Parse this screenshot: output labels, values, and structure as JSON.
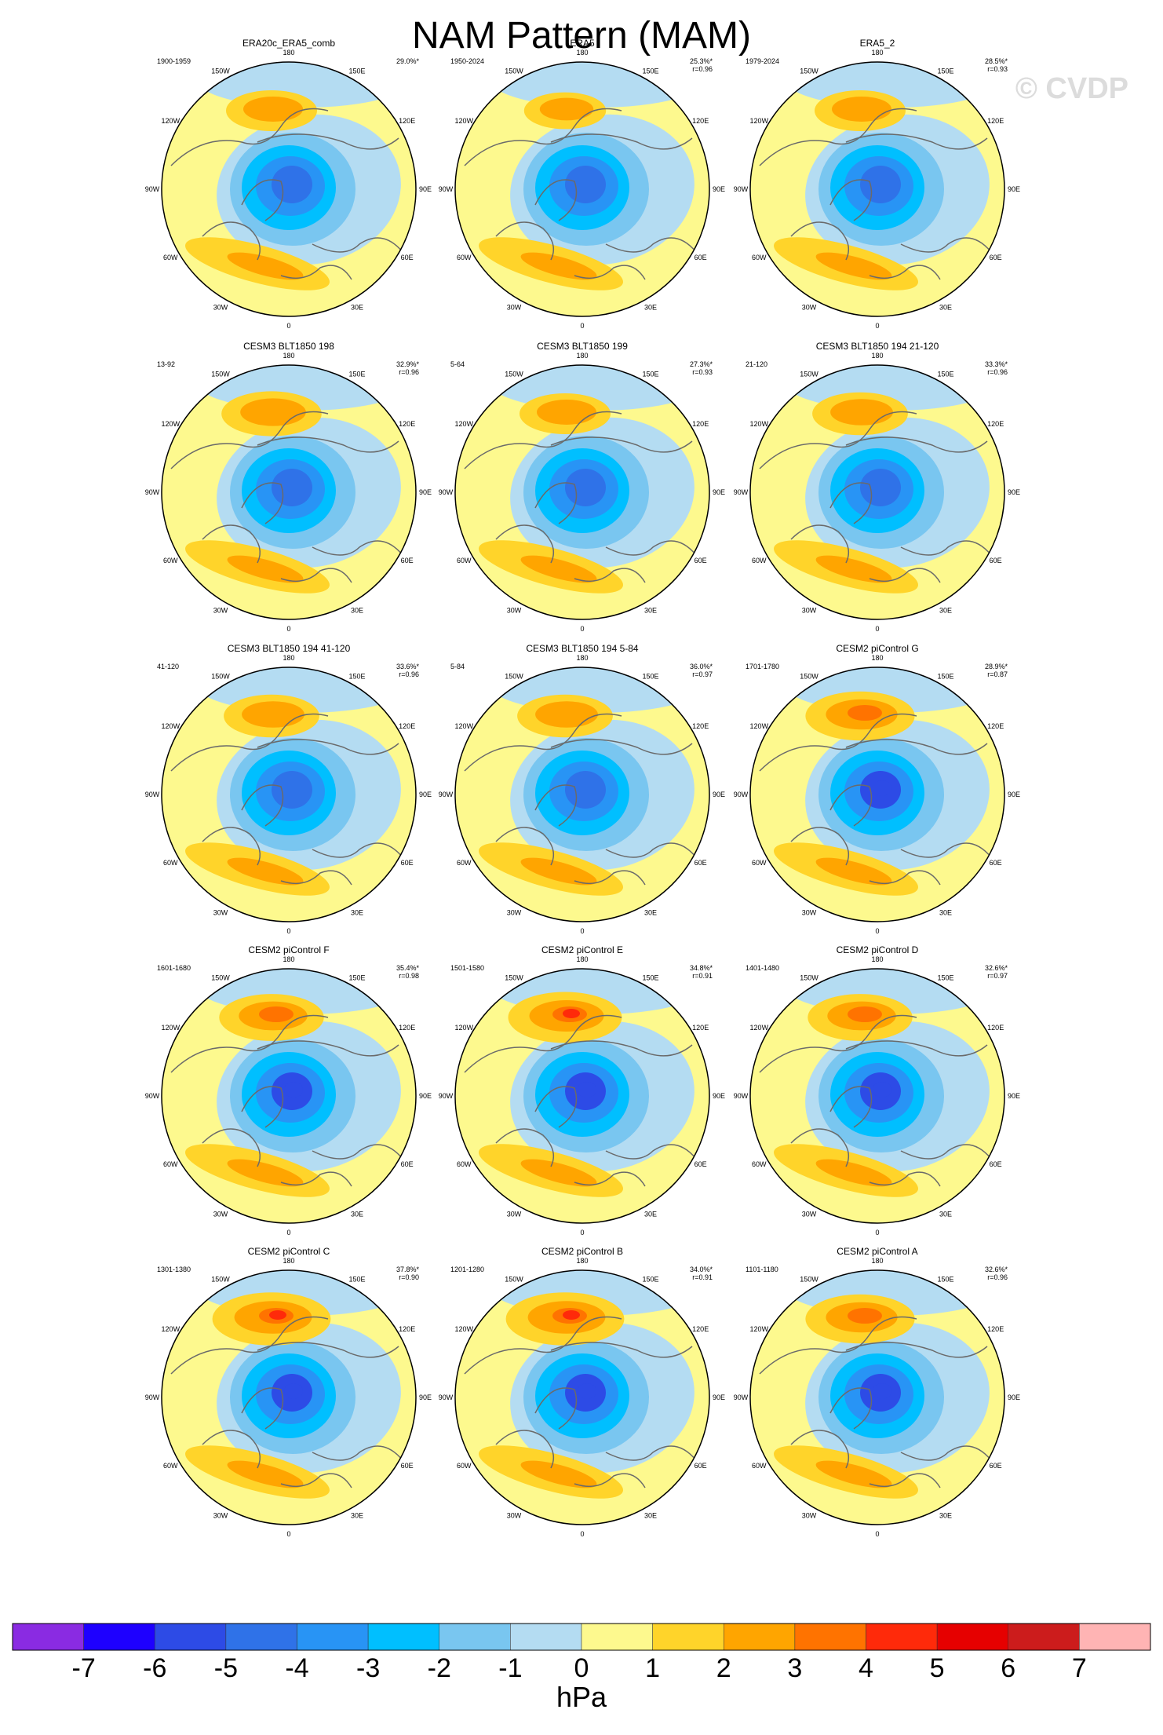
{
  "header": {
    "title": "NAM Pattern (MAM)",
    "watermark": "© CVDP"
  },
  "colors": {
    "land_outline": "#6a6a6a",
    "map_border": "#000000",
    "background": "#ffffff"
  },
  "chart_data": {
    "type": "polar-map-panels",
    "rows": 5,
    "cols": 3,
    "panels": [
      {
        "title": "ERA20c_ERA5_comb",
        "period": "1900-1959",
        "variance": "29.0%*",
        "corr": ""
      },
      {
        "title": "ERA5",
        "period": "1950-2024",
        "variance": "25.3%*",
        "corr": "r=0.96"
      },
      {
        "title": "ERA5_2",
        "period": "1979-2024",
        "variance": "28.5%*",
        "corr": "r=0.93"
      },
      {
        "title": "CESM3 BLT1850 198",
        "period": "13-92",
        "variance": "32.9%*",
        "corr": "r=0.96"
      },
      {
        "title": "CESM3 BLT1850 199",
        "period": "5-64",
        "variance": "27.3%*",
        "corr": "r=0.93"
      },
      {
        "title": "CESM3 BLT1850 194 21-120",
        "period": "21-120",
        "variance": "33.3%*",
        "corr": "r=0.96"
      },
      {
        "title": "CESM3 BLT1850 194 41-120",
        "period": "41-120",
        "variance": "33.6%*",
        "corr": "r=0.96"
      },
      {
        "title": "CESM3 BLT1850 194 5-84",
        "period": "5-84",
        "variance": "36.0%*",
        "corr": "r=0.97"
      },
      {
        "title": "CESM2 piControl G",
        "period": "1701-1780",
        "variance": "28.9%*",
        "corr": "r=0.87"
      },
      {
        "title": "CESM2 piControl F",
        "period": "1601-1680",
        "variance": "35.4%*",
        "corr": "r=0.98"
      },
      {
        "title": "CESM2 piControl E",
        "period": "1501-1580",
        "variance": "34.8%*",
        "corr": "r=0.91"
      },
      {
        "title": "CESM2 piControl D",
        "period": "1401-1480",
        "variance": "32.6%*",
        "corr": "r=0.97"
      },
      {
        "title": "CESM2 piControl C",
        "period": "1301-1380",
        "variance": "37.8%*",
        "corr": "r=0.90"
      },
      {
        "title": "CESM2 piControl B",
        "period": "1201-1280",
        "variance": "34.0%*",
        "corr": "r=0.91"
      },
      {
        "title": "CESM2 piControl A",
        "period": "1101-1180",
        "variance": "32.6%*",
        "corr": "r=0.96"
      }
    ],
    "longitude_labels": [
      "180",
      "150E",
      "120E",
      "90E",
      "60E",
      "30E",
      "0",
      "30W",
      "60W",
      "90W",
      "120W",
      "150W"
    ],
    "colorbar": {
      "unit": "hPa",
      "ticks": [
        "-7",
        "-6",
        "-5",
        "-4",
        "-3",
        "-2",
        "-1",
        "0",
        "1",
        "2",
        "3",
        "4",
        "5",
        "6",
        "7"
      ],
      "colors": [
        "#8a2be2",
        "#1e00ff",
        "#2d4be6",
        "#2f72e8",
        "#2894f5",
        "#00bfff",
        "#79c6f0",
        "#b4dcf2",
        "#fdf98e",
        "#ffd42a",
        "#ffa500",
        "#ff7300",
        "#ff2a0a",
        "#e60000",
        "#cc1c1c",
        "#ffb4b4"
      ]
    }
  }
}
